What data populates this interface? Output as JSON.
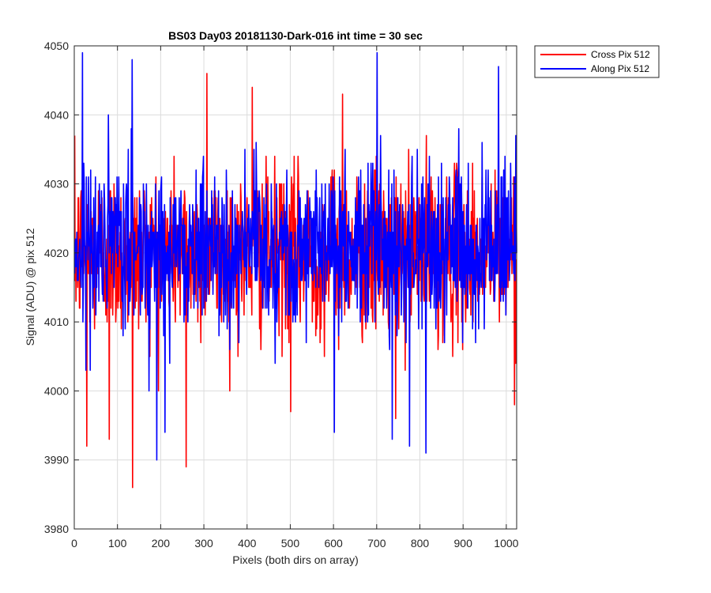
{
  "chart_data": {
    "type": "line",
    "title": "BS03 Day03 20181130-Dark-016 int time = 30 sec",
    "xlabel": "Pixels (both dirs on array)",
    "ylabel": "Signal (ADU) @ pix 512",
    "xlim": [
      0,
      1024
    ],
    "ylim": [
      3980,
      4050
    ],
    "xticks": [
      0,
      100,
      200,
      300,
      400,
      500,
      600,
      700,
      800,
      900,
      1000
    ],
    "yticks": [
      3980,
      3990,
      4000,
      4010,
      4020,
      4030,
      4040,
      4050
    ],
    "grid": true,
    "legend_position": "outside-top-right",
    "series": [
      {
        "name": "Cross Pix 512",
        "color": "#ff0000",
        "mean": 4020,
        "std": 7,
        "n_points": 1024,
        "extremes": [
          {
            "x": 134,
            "y": 3986
          },
          {
            "x": 258,
            "y": 3989
          },
          {
            "x": 28,
            "y": 3992
          },
          {
            "x": 80,
            "y": 3993
          },
          {
            "x": 306,
            "y": 4046
          },
          {
            "x": 411,
            "y": 4044
          },
          {
            "x": 500,
            "y": 3997
          },
          {
            "x": 620,
            "y": 4043
          },
          {
            "x": 743,
            "y": 3996
          },
          {
            "x": 1018,
            "y": 3998
          }
        ]
      },
      {
        "name": "Along Pix 512",
        "color": "#0000ff",
        "mean": 4021,
        "std": 7,
        "n_points": 1024,
        "extremes": [
          {
            "x": 18,
            "y": 4049
          },
          {
            "x": 133,
            "y": 4048
          },
          {
            "x": 190,
            "y": 3990
          },
          {
            "x": 209,
            "y": 3994
          },
          {
            "x": 601,
            "y": 3994
          },
          {
            "x": 700,
            "y": 4049
          },
          {
            "x": 735,
            "y": 3993
          },
          {
            "x": 775,
            "y": 3992
          },
          {
            "x": 813,
            "y": 3991
          },
          {
            "x": 981,
            "y": 4047
          }
        ]
      }
    ]
  }
}
